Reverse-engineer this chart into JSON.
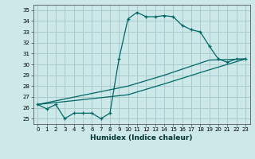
{
  "title": "",
  "xlabel": "Humidex (Indice chaleur)",
  "ylabel": "",
  "bg_color": "#cce8e8",
  "grid_color": "#aacccc",
  "line_color": "#006666",
  "xlim": [
    -0.5,
    23.5
  ],
  "ylim": [
    24.5,
    35.5
  ],
  "yticks": [
    25,
    26,
    27,
    28,
    29,
    30,
    31,
    32,
    33,
    34,
    35
  ],
  "xticks": [
    0,
    1,
    2,
    3,
    4,
    5,
    6,
    7,
    8,
    9,
    10,
    11,
    12,
    13,
    14,
    15,
    16,
    17,
    18,
    19,
    20,
    21,
    22,
    23
  ],
  "line1_x": [
    0,
    1,
    2,
    3,
    4,
    5,
    6,
    7,
    8,
    9,
    10,
    11,
    12,
    13,
    14,
    15,
    16,
    17,
    18,
    19,
    20,
    21,
    22,
    23
  ],
  "line1_y": [
    26.3,
    25.9,
    26.3,
    25.0,
    25.5,
    25.5,
    25.5,
    25.0,
    25.5,
    30.5,
    34.2,
    34.8,
    34.4,
    34.4,
    34.5,
    34.4,
    33.6,
    33.2,
    33.0,
    31.7,
    30.5,
    30.2,
    30.5,
    30.5
  ],
  "line2_x": [
    0,
    10,
    14,
    19,
    23
  ],
  "line2_y": [
    26.3,
    28.0,
    29.0,
    30.4,
    30.5
  ],
  "line3_x": [
    0,
    10,
    14,
    19,
    23
  ],
  "line3_y": [
    26.3,
    27.2,
    28.2,
    29.5,
    30.5
  ]
}
